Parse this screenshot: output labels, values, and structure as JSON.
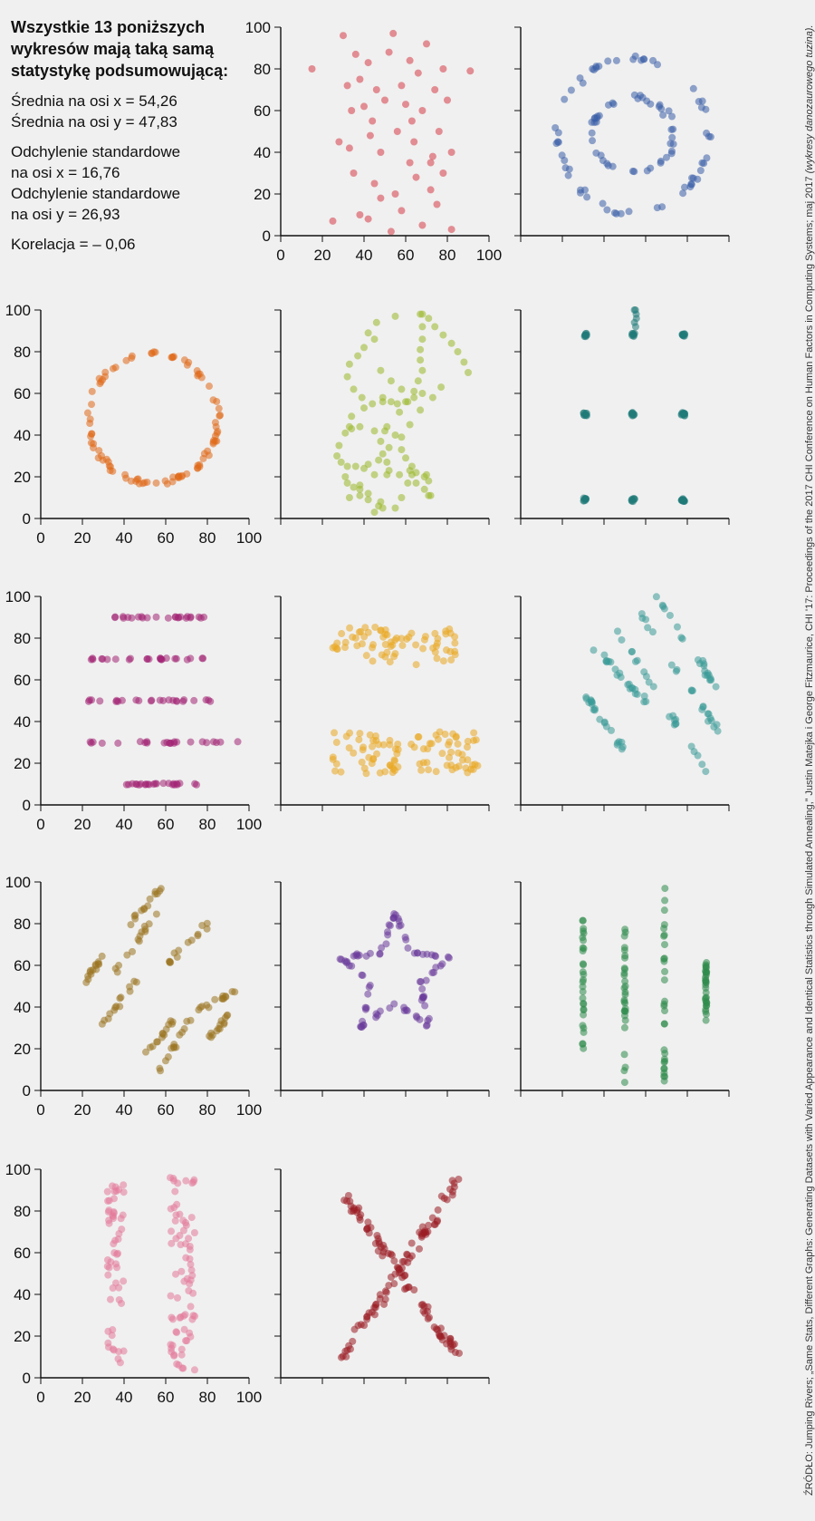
{
  "stats": {
    "title_line1": "Wszystkie 13 poniższych",
    "title_line2": "wykresów mają taką samą",
    "title_line3": "statystykę podsumowującą:",
    "mean_x": "Średnia na osi x = 54,26",
    "mean_y": "Średnia na osi y = 47,83",
    "sd_x_line1": "Odchylenie standardowe",
    "sd_x_line2": "na osi x = 16,76",
    "sd_y_line1": "Odchylenie standardowe",
    "sd_y_line2": "na osi y = 26,93",
    "corr": "Korelacja = – 0,06"
  },
  "source": {
    "text": "ŹRÓDŁO: Jumping Rivers; „Same Stats, Different Graphs: Generating Datasets with Varied Appearance and Identical Statistics through Simulated Annealing,” Justin Matejka i George Fitzmaurice, CHI '17: Proceedings of the 2017 CHI Conference on Human Factors in Computing Systems; maj 2017 ",
    "italic": "(wykresy danozaurowego tuzina)."
  },
  "axis": {
    "ticks": [
      0,
      20,
      40,
      60,
      80,
      100
    ],
    "xlim": [
      0,
      100
    ],
    "ylim": [
      0,
      100
    ]
  },
  "chart_data": [
    {
      "type": "scatter",
      "color": "#d63c47",
      "tick_labels": true,
      "generator": "away",
      "x": [
        15,
        30,
        32,
        34,
        36,
        38,
        40,
        42,
        44,
        46,
        48,
        50,
        52,
        54,
        56,
        58,
        60,
        62,
        64,
        66,
        68,
        70,
        72,
        74,
        76,
        78,
        80,
        82,
        91,
        35,
        45,
        55,
        65,
        75,
        38,
        48,
        62,
        72,
        28,
        42,
        58,
        68,
        78,
        33,
        53,
        73,
        43,
        63,
        25,
        82
      ],
      "y": [
        80,
        96,
        72,
        60,
        87,
        75,
        62,
        83,
        55,
        70,
        40,
        65,
        88,
        97,
        50,
        72,
        63,
        84,
        45,
        78,
        60,
        92,
        35,
        70,
        50,
        80,
        65,
        40,
        79,
        30,
        25,
        20,
        28,
        15,
        10,
        18,
        35,
        22,
        45,
        8,
        12,
        5,
        30,
        42,
        2,
        38,
        48,
        55,
        7,
        3
      ]
    },
    {
      "type": "scatter",
      "color": "#3a5fa8",
      "tick_labels": false,
      "generator": "bullseye",
      "x": [],
      "y": []
    },
    {
      "type": "scatter",
      "color": "#e06a1a",
      "tick_labels": true,
      "generator": "circle",
      "x": [],
      "y": []
    },
    {
      "type": "scatter",
      "color": "#9ab82a",
      "tick_labels": false,
      "generator": "dino",
      "x": [
        55,
        46,
        42,
        45,
        40,
        37,
        33,
        32,
        35,
        39,
        44,
        49,
        53,
        56,
        61,
        64,
        66,
        68,
        67,
        67,
        68,
        68,
        67,
        68,
        71,
        74,
        78,
        82,
        85,
        88,
        90,
        77,
        73,
        67,
        62,
        58,
        52,
        47,
        42,
        40,
        36,
        32,
        29,
        27,
        28,
        31,
        34,
        38,
        45,
        50,
        55,
        58,
        60,
        63,
        65,
        69,
        71,
        51,
        49,
        48,
        51,
        57,
        60,
        64,
        48,
        42,
        38,
        35,
        32,
        31,
        33,
        38,
        42,
        38,
        52,
        62,
        65,
        71,
        47,
        45,
        49,
        55,
        58,
        61,
        69,
        72,
        70,
        63,
        57,
        51,
        45,
        34,
        33,
        40,
        49,
        58,
        68,
        53,
        48
      ],
      "y": [
        97,
        94,
        89,
        86,
        82,
        78,
        74,
        68,
        62,
        58,
        55,
        56,
        56,
        55,
        56,
        61,
        66,
        71,
        76,
        81,
        86,
        92,
        98,
        98,
        96,
        92,
        88,
        84,
        80,
        75,
        70,
        63,
        58,
        52,
        45,
        39,
        34,
        28,
        26,
        24,
        25,
        25,
        27,
        30,
        35,
        41,
        43,
        44,
        42,
        42,
        40,
        33,
        29,
        25,
        22,
        20,
        18,
        27,
        31,
        37,
        44,
        51,
        56,
        58,
        8,
        12,
        14,
        15,
        17,
        20,
        10,
        11,
        9,
        16,
        23,
        23,
        17,
        11,
        6,
        3,
        5,
        5,
        10,
        17,
        14,
        11,
        21,
        21,
        21,
        21,
        21,
        49,
        44,
        53,
        58,
        62,
        60,
        66,
        71
      ]
    },
    {
      "type": "scatter",
      "color": "#1f7a78",
      "tick_labels": false,
      "generator": "dots",
      "x": [],
      "y": []
    },
    {
      "type": "scatter",
      "color": "#a22575",
      "tick_labels": true,
      "generator": "hlines",
      "x": [],
      "y": []
    },
    {
      "type": "scatter",
      "color": "#e9a820",
      "tick_labels": false,
      "generator": "hbands",
      "x": [],
      "y": []
    },
    {
      "type": "scatter",
      "color": "#3a9a98",
      "tick_labels": false,
      "generator": "diag_down",
      "x": [],
      "y": []
    },
    {
      "type": "scatter",
      "color": "#9a7420",
      "tick_labels": true,
      "generator": "diag_up",
      "x": [],
      "y": []
    },
    {
      "type": "scatter",
      "color": "#6a3a9a",
      "tick_labels": false,
      "generator": "star",
      "x": [],
      "y": []
    },
    {
      "type": "scatter",
      "color": "#2e8a4a",
      "tick_labels": false,
      "generator": "vlines",
      "x": [],
      "y": []
    },
    {
      "type": "scatter",
      "color": "#e37a9a",
      "tick_labels": true,
      "generator": "wide_lines",
      "x": [],
      "y": []
    },
    {
      "type": "scatter",
      "color": "#9a1e24",
      "tick_labels": false,
      "generator": "x_shape",
      "x": [],
      "y": []
    }
  ]
}
